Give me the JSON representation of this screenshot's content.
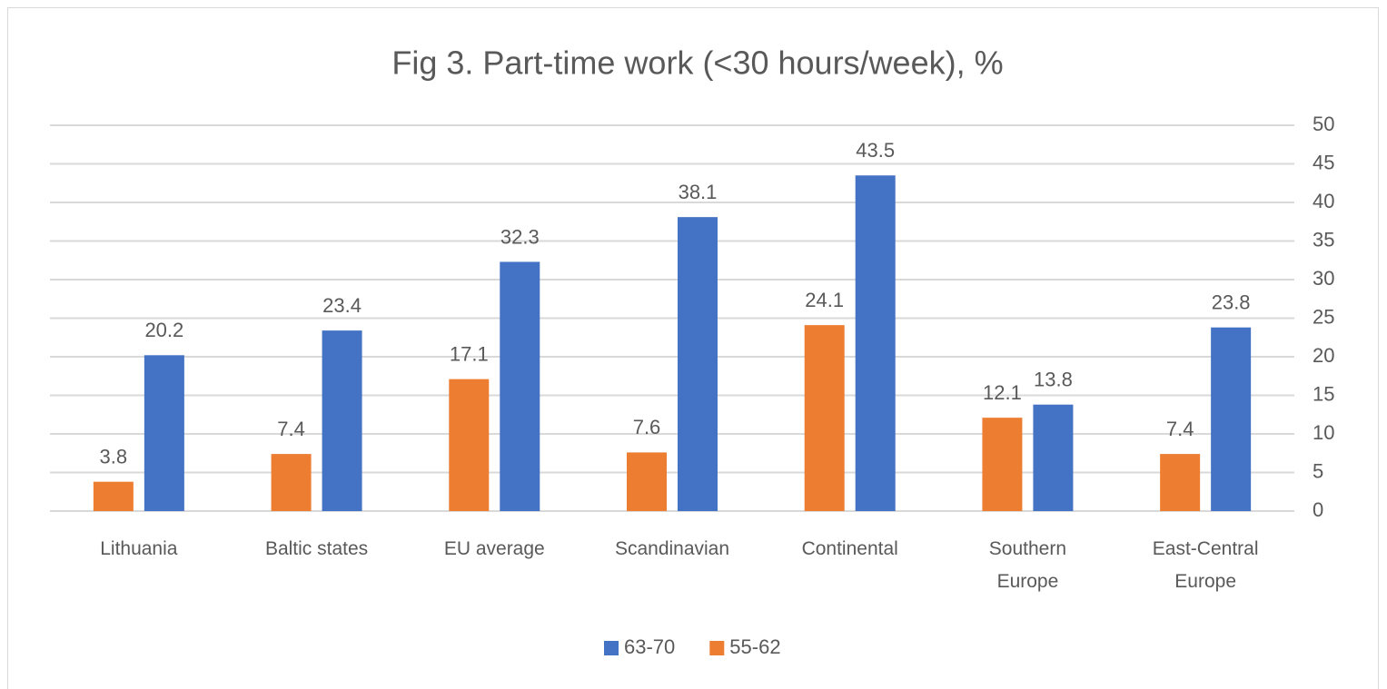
{
  "chart_data": {
    "type": "bar",
    "title": "Fig 3. Part-time work (<30 hours/week), %",
    "categories": [
      "Lithuania",
      "Baltic states",
      "EU average",
      "Scandinavian",
      "Continental",
      "Southern Europe",
      "East-Central Europe"
    ],
    "series": [
      {
        "name": "63-70",
        "color": "#4472c4",
        "values": [
          20.2,
          23.4,
          32.3,
          38.1,
          43.5,
          13.8,
          23.8
        ]
      },
      {
        "name": "55-62",
        "color": "#ed7d31",
        "values": [
          3.8,
          7.4,
          17.1,
          7.6,
          24.1,
          12.1,
          7.4
        ]
      }
    ],
    "ylim": [
      0,
      50
    ],
    "yticks": [
      0,
      5,
      10,
      15,
      20,
      25,
      30,
      35,
      40,
      45,
      50
    ],
    "grid": true,
    "y_axis_side": "right",
    "legend": "bottom"
  }
}
